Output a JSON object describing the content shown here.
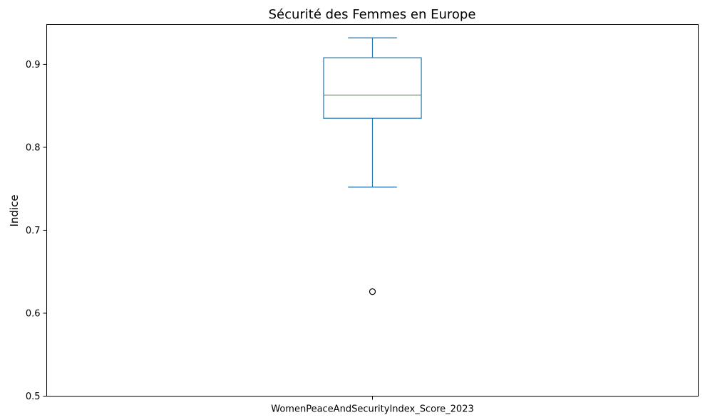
{
  "chart_data": {
    "type": "box",
    "title": "Sécurité des Femmes en Europe",
    "xlabel": "",
    "ylabel": "Indice",
    "categories": [
      "WomenPeaceAndSecurityIndex_Score_2023"
    ],
    "ylim": [
      0.5,
      0.948
    ],
    "yticks": [
      0.5,
      0.6,
      0.7,
      0.8,
      0.9
    ],
    "ytick_labels": [
      "0.5",
      "0.6",
      "0.7",
      "0.8",
      "0.9"
    ],
    "boxes": [
      {
        "whisker_low": 0.752,
        "q1": 0.835,
        "median": 0.863,
        "q3": 0.908,
        "whisker_high": 0.932,
        "outliers": [
          0.626
        ]
      }
    ],
    "grid": false,
    "legend": "none",
    "colors": {
      "box": "#1f77b4",
      "median": "#2ca02c",
      "outlier": "#000000",
      "axes": "#000000"
    }
  }
}
